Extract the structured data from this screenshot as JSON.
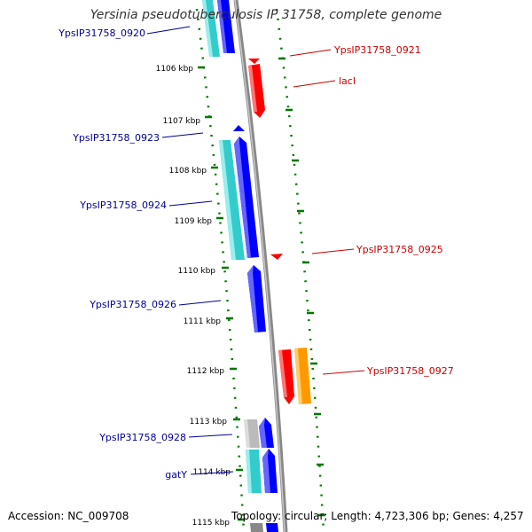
{
  "title": "Yersinia pseudotuberculosis IP 31758, complete genome",
  "footer": {
    "accession": "Accession: NC_009708",
    "topology": "Topology: circular; Length: 4,723,306 bp; Genes: 4,257"
  },
  "colors": {
    "background": "#ffffff",
    "backbone": "#888888",
    "tick": "#007700",
    "forward_label": "#000099",
    "reverse_label": "#cc0000",
    "blue_gene": "#0000ff",
    "cyan_gene": "#33cccc",
    "red_gene": "#ff0000",
    "orange_gene": "#ff9900",
    "gray_gene": "#bbbbbb"
  },
  "kbp_labels": [
    "1106 kbp",
    "1107 kbp",
    "1108 kbp",
    "1109 kbp",
    "1110 kbp",
    "1111 kbp",
    "1112 kbp",
    "1113 kbp",
    "1114 kbp",
    "1115 kbp"
  ],
  "gene_labels": {
    "left": [
      "YpsIP31758_0920",
      "YpsIP31758_0923",
      "YpsIP31758_0924",
      "YpsIP31758_0926",
      "YpsIP31758_0928",
      "gatY"
    ],
    "right": [
      "YpsIP31758_0921",
      "lacI",
      "YpsIP31758_0925",
      "YpsIP31758_0927"
    ]
  }
}
